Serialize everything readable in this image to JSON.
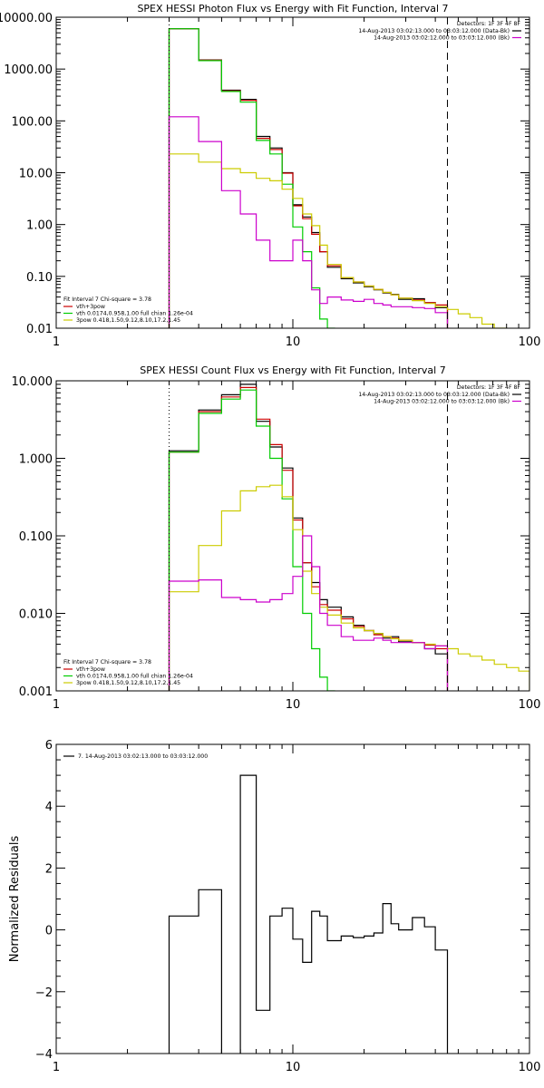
{
  "chart_data": [
    {
      "type": "line",
      "title": "SPEX HESSI Photon Flux vs Energy with Fit Function, Interval 7",
      "xlabel": "",
      "ylabel": "",
      "x_scale": "log",
      "y_scale": "log",
      "xlim": [
        1,
        100
      ],
      "ylim": [
        0.01,
        10000
      ],
      "x_ticks": [
        1,
        10,
        100
      ],
      "x_tick_labels": [
        "1",
        "10",
        "100"
      ],
      "y_ticks": [
        0.01,
        0.1,
        1,
        10,
        100,
        1000,
        10000
      ],
      "y_tick_labels": [
        "0.01",
        "0.10",
        "1.00",
        "10.00",
        "100.00",
        "1000.00",
        "10000.00"
      ],
      "vlines": [
        {
          "x": 3,
          "style": "dotted"
        },
        {
          "x": 45,
          "style": "dashed"
        }
      ],
      "detectors_text": "Detectors: 1F 3F 4F 8F",
      "legend_right": [
        {
          "label": "14-Aug-2013 03:02:13.000 to 03:03:12.000 (Data-Bk)",
          "color": "#000000"
        },
        {
          "label": "14-Aug-2013 03:02:12.000 to 03:03:12.000 (Bk)",
          "color": "#cc00cc"
        }
      ],
      "fit_label": "Fit Interval  7   Chi-square = 3.78",
      "legend_left": [
        {
          "label": "vth+3pow",
          "color": "#cc0000"
        },
        {
          "label": "vth 0.0174,0.958,1.00  full chian 1.26e-04",
          "color": "#00cc00"
        },
        {
          "label": "3pow 0.418,1.50,9.12,8.10,17.2,1.45",
          "color": "#cccc00"
        }
      ],
      "series": [
        {
          "name": "14-Aug-2013 03:02:13.000 to 03:03:12.000 (Data-Bk)",
          "color": "#000000",
          "edges": [
            3,
            4,
            5,
            6,
            7,
            8,
            9,
            10,
            11,
            12,
            13,
            14,
            16,
            18,
            20,
            22,
            24,
            26,
            28,
            32,
            36,
            40,
            45
          ],
          "values": [
            6000,
            1500,
            390,
            260,
            50,
            30,
            10,
            2.4,
            1.4,
            0.7,
            0.3,
            0.15,
            0.09,
            0.075,
            0.063,
            0.055,
            0.048,
            0.045,
            0.036,
            0.037,
            0.031,
            0.025
          ]
        },
        {
          "name": "vth+3pow",
          "color": "#cc0000",
          "edges": [
            3,
            4,
            5,
            6,
            7,
            8,
            9,
            10,
            11,
            12,
            13,
            14,
            16,
            18,
            20,
            22,
            24,
            26,
            28,
            32,
            36,
            40,
            45
          ],
          "values": [
            6000,
            1480,
            380,
            250,
            46,
            28,
            9.8,
            2.3,
            1.3,
            0.65,
            0.3,
            0.16,
            0.095,
            0.078,
            0.065,
            0.056,
            0.049,
            0.044,
            0.038,
            0.035,
            0.031,
            0.028
          ]
        },
        {
          "name": "vth",
          "color": "#00cc00",
          "edges": [
            3,
            4,
            5,
            6,
            7,
            8,
            9,
            10,
            11,
            12,
            13,
            14,
            15
          ],
          "values": [
            6000,
            1450,
            370,
            230,
            42,
            23,
            6,
            0.9,
            0.3,
            0.06,
            0.015,
            0.01
          ]
        },
        {
          "name": "3pow",
          "color": "#cccc00",
          "edges": [
            3,
            4,
            5,
            6,
            7,
            8,
            9,
            10,
            11,
            12,
            13,
            14,
            16,
            18,
            20,
            22,
            24,
            26,
            28,
            32,
            36,
            40,
            45,
            50,
            56,
            63,
            71,
            80
          ],
          "values": [
            23,
            16,
            12,
            10,
            7.8,
            7,
            4.8,
            3.2,
            1.6,
            0.95,
            0.4,
            0.17,
            0.095,
            0.078,
            0.065,
            0.056,
            0.049,
            0.044,
            0.038,
            0.034,
            0.03,
            0.026,
            0.023,
            0.019,
            0.016,
            0.012,
            0.01
          ]
        },
        {
          "name": "14-Aug-2013 03:02:12.000 to 03:03:12.000 (Bk)",
          "color": "#cc00cc",
          "edges": [
            3,
            4,
            5,
            6,
            7,
            8,
            9,
            10,
            11,
            12,
            13,
            14,
            16,
            18,
            20,
            22,
            24,
            26,
            28,
            32,
            36,
            40,
            45
          ],
          "values": [
            120,
            40,
            4.5,
            1.6,
            0.5,
            0.2,
            0.2,
            0.5,
            0.2,
            0.055,
            0.03,
            0.04,
            0.035,
            0.033,
            0.036,
            0.03,
            0.028,
            0.026,
            0.026,
            0.025,
            0.024,
            0.02
          ]
        }
      ]
    },
    {
      "type": "line",
      "title": "SPEX HESSI Count Flux vs Energy with Fit Function, Interval 7",
      "xlabel": "",
      "ylabel": "",
      "x_scale": "log",
      "y_scale": "log",
      "xlim": [
        1,
        100
      ],
      "ylim": [
        0.001,
        10
      ],
      "x_ticks": [
        1,
        10,
        100
      ],
      "x_tick_labels": [
        "1",
        "10",
        "100"
      ],
      "y_ticks": [
        0.001,
        0.01,
        0.1,
        1,
        10
      ],
      "y_tick_labels": [
        "0.001",
        "0.010",
        "0.100",
        "1.000",
        "10.000"
      ],
      "vlines": [
        {
          "x": 3,
          "style": "dotted"
        },
        {
          "x": 45,
          "style": "dashed"
        }
      ],
      "detectors_text": "Detectors: 1F 3F 4F 8F",
      "legend_right": [
        {
          "label": "14-Aug-2013 03:02:13.000 to 03:03:12.000 (Data-Bk)",
          "color": "#000000"
        },
        {
          "label": "14-Aug-2013 03:02:12.000 to 03:03:12.000 (Bk)",
          "color": "#cc00cc"
        }
      ],
      "fit_label": "Fit Interval  7   Chi-square = 3.78",
      "legend_left": [
        {
          "label": "vth+3pow",
          "color": "#cc0000"
        },
        {
          "label": "vth 0.0174,0.958,1.00  full chian 1.26e-04",
          "color": "#00cc00"
        },
        {
          "label": "3pow 0.418,1.50,9.12,8.10,17.2,1.45",
          "color": "#cccc00"
        }
      ],
      "series": [
        {
          "name": "14-Aug-2013 03:02:13.000 to 03:03:12.000 (Data-Bk)",
          "color": "#000000",
          "edges": [
            3,
            4,
            5,
            6,
            7,
            8,
            9,
            10,
            11,
            12,
            13,
            14,
            16,
            18,
            20,
            22,
            24,
            26,
            28,
            32,
            36,
            40,
            45
          ],
          "values": [
            1.25,
            4.2,
            6.6,
            9.0,
            3.0,
            1.4,
            0.75,
            0.17,
            0.045,
            0.025,
            0.015,
            0.012,
            0.009,
            0.007,
            0.006,
            0.0055,
            0.0048,
            0.005,
            0.0043,
            0.0042,
            0.0035,
            0.003
          ]
        },
        {
          "name": "vth+3pow",
          "color": "#cc0000",
          "edges": [
            3,
            4,
            5,
            6,
            7,
            8,
            9,
            10,
            11,
            12,
            13,
            14,
            16,
            18,
            20,
            22,
            24,
            26,
            28,
            32,
            36,
            40,
            45
          ],
          "values": [
            1.2,
            4.0,
            6.2,
            8.2,
            3.2,
            1.5,
            0.7,
            0.16,
            0.045,
            0.022,
            0.013,
            0.011,
            0.0085,
            0.0068,
            0.006,
            0.0053,
            0.005,
            0.0048,
            0.0045,
            0.0042,
            0.0039,
            0.0035
          ]
        },
        {
          "name": "vth",
          "color": "#00cc00",
          "edges": [
            3,
            4,
            5,
            6,
            7,
            8,
            9,
            10,
            11,
            12,
            13,
            14,
            15
          ],
          "values": [
            1.2,
            3.8,
            5.8,
            7.6,
            2.6,
            1.0,
            0.3,
            0.04,
            0.01,
            0.0035,
            0.0015,
            0.001
          ]
        },
        {
          "name": "3pow",
          "color": "#cccc00",
          "edges": [
            3,
            4,
            5,
            6,
            7,
            8,
            9,
            10,
            11,
            12,
            13,
            14,
            16,
            18,
            20,
            22,
            24,
            26,
            28,
            32,
            36,
            40,
            45,
            50,
            56,
            63,
            71,
            80,
            90,
            100
          ],
          "values": [
            0.019,
            0.075,
            0.21,
            0.38,
            0.43,
            0.45,
            0.32,
            0.12,
            0.035,
            0.018,
            0.012,
            0.0095,
            0.0075,
            0.0065,
            0.006,
            0.0055,
            0.005,
            0.0047,
            0.0045,
            0.0042,
            0.004,
            0.0038,
            0.0035,
            0.003,
            0.0028,
            0.0025,
            0.0022,
            0.002,
            0.0018
          ]
        },
        {
          "name": "14-Aug-2013 03:02:12.000 to 03:03:12.000 (Bk)",
          "color": "#cc00cc",
          "edges": [
            3,
            4,
            5,
            6,
            7,
            8,
            9,
            10,
            11,
            12,
            13,
            14,
            16,
            18,
            20,
            22,
            24,
            26,
            28,
            32,
            36,
            40,
            45
          ],
          "values": [
            0.026,
            0.027,
            0.016,
            0.015,
            0.014,
            0.015,
            0.018,
            0.03,
            0.1,
            0.04,
            0.01,
            0.007,
            0.005,
            0.0045,
            0.0045,
            0.0048,
            0.0045,
            0.0042,
            0.0042,
            0.0042,
            0.0035,
            0.0038
          ]
        }
      ]
    },
    {
      "type": "line",
      "title": "",
      "xlabel": "",
      "ylabel": "Normalized Residuals",
      "x_scale": "log",
      "y_scale": "linear",
      "xlim": [
        1,
        100
      ],
      "ylim": [
        -4,
        6
      ],
      "x_ticks": [
        1,
        10,
        100
      ],
      "x_tick_labels": [
        "1",
        "10",
        "100"
      ],
      "y_ticks": [
        -4,
        -2,
        0,
        2,
        4,
        6
      ],
      "y_tick_labels": [
        "−4",
        "−2",
        "0",
        "2",
        "4",
        "6"
      ],
      "vlines": [],
      "legend_left": [
        {
          "label": "7. 14-Aug-2013 03:02:13.000 to 03:03:12.000",
          "color": "#000000"
        }
      ],
      "series": [
        {
          "name": "7. 14-Aug-2013 03:02:13.000 to 03:03:12.000",
          "color": "#000000",
          "edges": [
            3,
            4,
            5,
            6,
            7,
            8,
            9,
            10,
            11,
            12,
            13,
            14,
            16,
            18,
            20,
            22,
            24,
            26,
            28,
            32,
            36,
            40,
            45
          ],
          "values": [
            0.45,
            1.3,
            -4.05,
            5.0,
            -2.6,
            0.45,
            0.7,
            -0.3,
            -1.05,
            0.6,
            0.45,
            -0.35,
            -0.2,
            -0.25,
            -0.2,
            -0.1,
            0.85,
            0.2,
            0.0,
            0.4,
            0.1,
            -0.65
          ]
        }
      ]
    }
  ]
}
